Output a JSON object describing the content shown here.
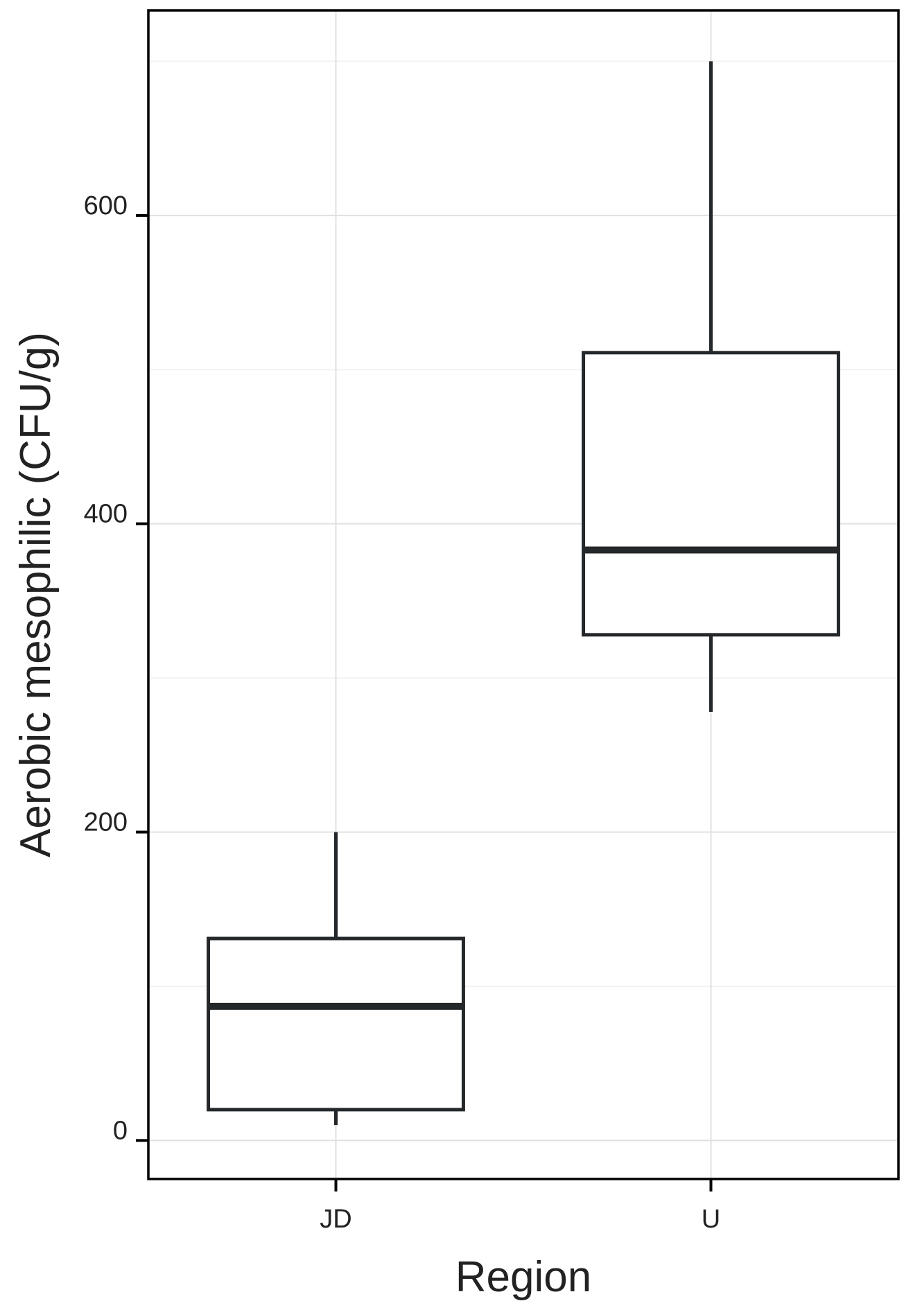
{
  "chart_data": {
    "type": "boxplot",
    "title": "",
    "xlabel": "Region",
    "ylabel": "Aerobic mesophilic (CFU/g)",
    "ylim": [
      -25,
      733
    ],
    "yticks": [
      0,
      200,
      400,
      600
    ],
    "grid": true,
    "categories": [
      "JD",
      "U"
    ],
    "boxes": [
      {
        "category": "JD",
        "whisker_low": 10,
        "q1": 20,
        "median": 87,
        "q3": 131,
        "whisker_high": 200
      },
      {
        "category": "U",
        "whisker_low": 278,
        "q1": 328,
        "median": 383,
        "q3": 511,
        "whisker_high": 700
      }
    ],
    "colors": {
      "box_stroke": "#24282b",
      "grid_major": "#e0e0e0",
      "grid_minor": "#f2f2f2",
      "frame": "#000000"
    }
  }
}
